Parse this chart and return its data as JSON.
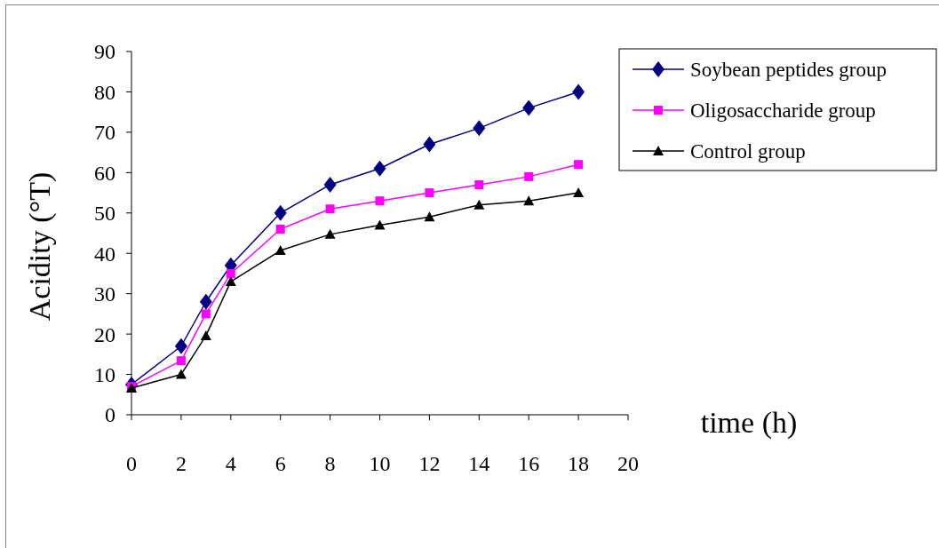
{
  "chart_data": {
    "type": "line",
    "xlabel": "time (h)",
    "ylabel": "Acidity (°T)",
    "x": [
      0,
      2,
      3,
      4,
      6,
      8,
      10,
      12,
      14,
      16,
      18
    ],
    "xlim": [
      0,
      20
    ],
    "xticks": [
      0,
      2,
      4,
      6,
      8,
      10,
      12,
      14,
      16,
      18,
      20
    ],
    "ylim": [
      0,
      90
    ],
    "yticks": [
      0,
      10,
      20,
      30,
      40,
      50,
      60,
      70,
      80,
      90
    ],
    "grid": false,
    "legend": "top right",
    "series": [
      {
        "name": "Soybean peptides group",
        "color": "#000080",
        "marker": "diamond",
        "values": [
          7.5,
          17,
          28,
          37,
          50,
          57,
          61,
          67,
          71,
          76,
          80
        ]
      },
      {
        "name": "Oligosaccharide group",
        "color": "#ff00ff",
        "marker": "square",
        "values": [
          7,
          13.4,
          25,
          35,
          46,
          51,
          53,
          55,
          57,
          59,
          62
        ]
      },
      {
        "name": "Control group",
        "color": "#000000",
        "marker": "triangle",
        "values": [
          6.6,
          10,
          19.6,
          33,
          40.7,
          44.7,
          47,
          49,
          52,
          53,
          55
        ]
      }
    ]
  }
}
